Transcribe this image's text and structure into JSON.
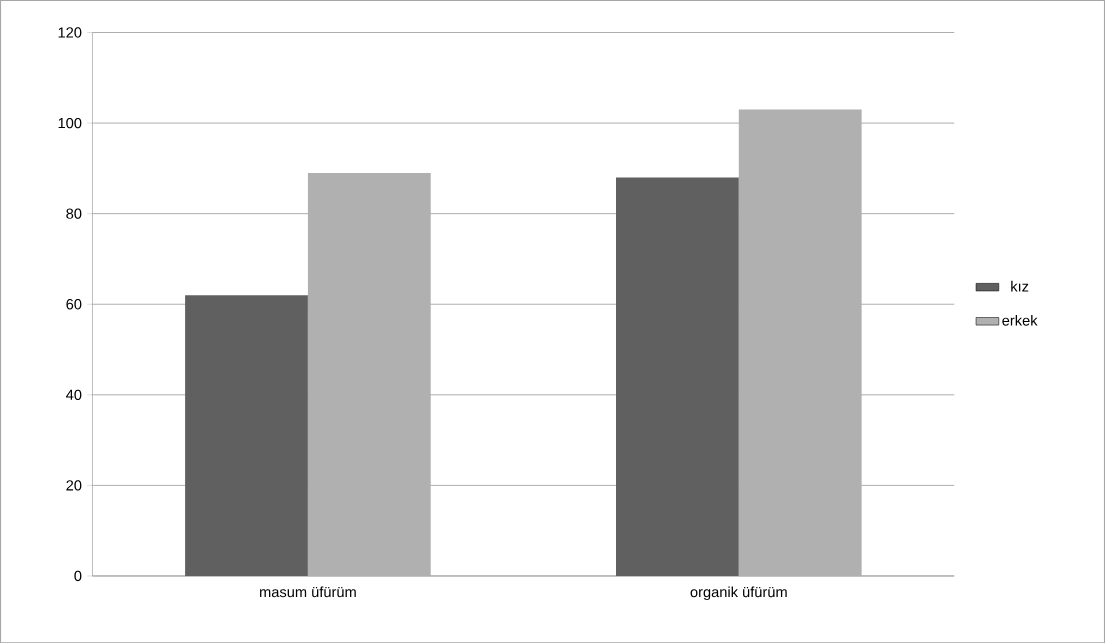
{
  "chart_data": {
    "type": "bar",
    "categories": [
      "masum üfürüm",
      "organik üfürüm"
    ],
    "series": [
      {
        "name": "kız",
        "color": "#606060",
        "values": [
          62,
          88
        ]
      },
      {
        "name": "erkek",
        "color": "#b0b0b0",
        "values": [
          89,
          103
        ]
      }
    ],
    "ylim": [
      0,
      120
    ],
    "yticks": [
      0,
      20,
      40,
      60,
      80,
      100,
      120
    ],
    "grid": "y",
    "legend": "right"
  }
}
